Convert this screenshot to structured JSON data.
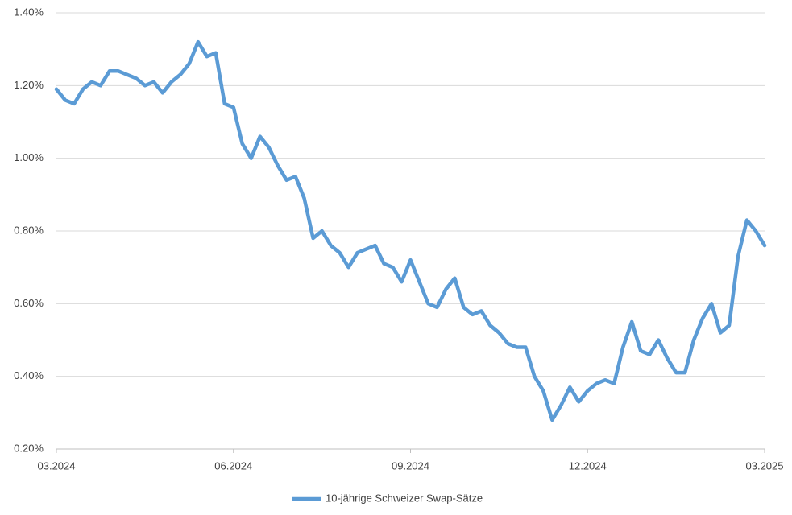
{
  "chart_data": {
    "type": "line",
    "categories": [
      "03.2024",
      null,
      null,
      null,
      null,
      null,
      null,
      null,
      null,
      null,
      null,
      null,
      null,
      null,
      null,
      null,
      null,
      null,
      null,
      null,
      "06.2024",
      null,
      null,
      null,
      null,
      null,
      null,
      null,
      null,
      null,
      null,
      null,
      null,
      null,
      null,
      null,
      null,
      null,
      null,
      null,
      "09.2024",
      null,
      null,
      null,
      null,
      null,
      null,
      null,
      null,
      null,
      null,
      null,
      null,
      null,
      null,
      null,
      null,
      null,
      null,
      null,
      "12.2024",
      null,
      null,
      null,
      null,
      null,
      null,
      null,
      null,
      null,
      null,
      null,
      null,
      null,
      null,
      null,
      null,
      null,
      null,
      null,
      "03.2025"
    ],
    "series": [
      {
        "name": "10-jährige Schweizer Swap-Sätze",
        "color": "#5b9bd5",
        "values": [
          1.19,
          1.16,
          1.15,
          1.19,
          1.21,
          1.2,
          1.24,
          1.24,
          1.23,
          1.22,
          1.2,
          1.21,
          1.18,
          1.21,
          1.23,
          1.26,
          1.32,
          1.28,
          1.29,
          1.15,
          1.14,
          1.04,
          1.0,
          1.06,
          1.03,
          0.98,
          0.94,
          0.95,
          0.89,
          0.78,
          0.8,
          0.76,
          0.74,
          0.7,
          0.74,
          0.75,
          0.76,
          0.71,
          0.7,
          0.66,
          0.72,
          0.66,
          0.6,
          0.59,
          0.64,
          0.67,
          0.59,
          0.57,
          0.58,
          0.54,
          0.52,
          0.49,
          0.48,
          0.48,
          0.4,
          0.36,
          0.28,
          0.32,
          0.37,
          0.33,
          0.36,
          0.38,
          0.39,
          0.38,
          0.48,
          0.55,
          0.47,
          0.46,
          0.5,
          0.45,
          0.41,
          0.41,
          0.5,
          0.56,
          0.6,
          0.52,
          0.54,
          0.73,
          0.83,
          0.8,
          0.76
        ]
      }
    ],
    "ylim": [
      0.2,
      1.4
    ],
    "yticks": [
      {
        "value": 0.2,
        "label": "0.20%"
      },
      {
        "value": 0.4,
        "label": "0.40%"
      },
      {
        "value": 0.6,
        "label": "0.60%"
      },
      {
        "value": 0.8,
        "label": "0.80%"
      },
      {
        "value": 1.0,
        "label": "1.00%"
      },
      {
        "value": 1.2,
        "label": "1.20%"
      },
      {
        "value": 1.4,
        "label": "1.40%"
      }
    ],
    "grid": true,
    "legend": "bottom"
  }
}
